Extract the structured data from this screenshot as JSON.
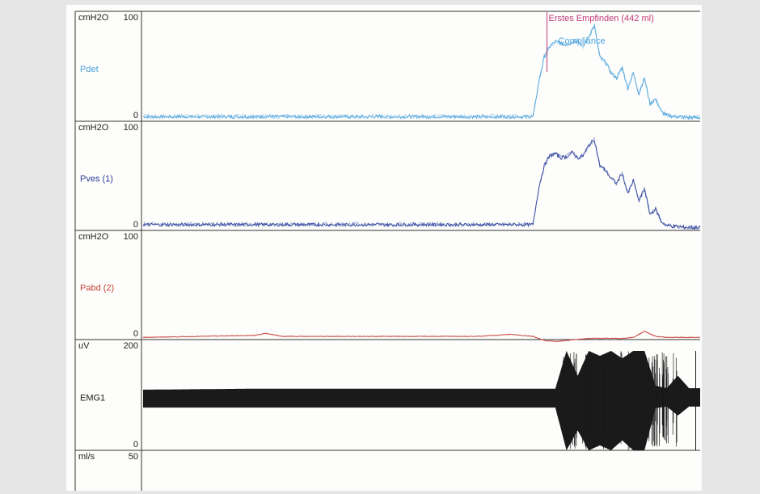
{
  "chart_data": [
    {
      "type": "line",
      "channel": "Pdet",
      "unit": "cmH2O",
      "ylim": [
        0,
        100
      ],
      "scale_top": "100",
      "scale_bottom": "0",
      "color": "#4aa3dd",
      "annotations": [
        "Erstes Empfinden (442 ml)",
        "Compliance"
      ],
      "annotation_colors": [
        "#c23b7a",
        "#4aa3dd"
      ],
      "x": [
        0,
        10,
        20,
        30,
        40,
        50,
        60,
        70,
        71,
        72,
        73,
        74,
        75,
        76,
        77,
        78,
        79,
        80,
        81,
        82,
        83,
        84,
        85,
        86,
        87,
        88,
        89,
        90,
        91,
        92,
        93,
        94,
        96,
        98,
        100
      ],
      "y": [
        3,
        3,
        3,
        3,
        3,
        3,
        3,
        3,
        35,
        60,
        70,
        75,
        73,
        72,
        74,
        76,
        70,
        80,
        90,
        60,
        55,
        45,
        40,
        50,
        30,
        45,
        25,
        40,
        15,
        20,
        8,
        4,
        3,
        2,
        2
      ]
    },
    {
      "type": "line",
      "channel": "Pves (1)",
      "unit": "cmH2O",
      "ylim": [
        0,
        100
      ],
      "scale_top": "100",
      "scale_bottom": "0",
      "color": "#2a3f9a",
      "x": [
        0,
        10,
        20,
        30,
        40,
        50,
        60,
        70,
        71,
        72,
        73,
        74,
        75,
        76,
        77,
        78,
        79,
        80,
        81,
        82,
        83,
        84,
        85,
        86,
        87,
        88,
        89,
        90,
        91,
        92,
        93,
        94,
        96,
        98,
        100
      ],
      "y": [
        5,
        5,
        5,
        5,
        5,
        5,
        5,
        5,
        40,
        62,
        72,
        74,
        70,
        71,
        75,
        70,
        72,
        82,
        88,
        62,
        58,
        50,
        45,
        55,
        35,
        48,
        28,
        40,
        15,
        20,
        8,
        4,
        3,
        2,
        2
      ]
    },
    {
      "type": "line",
      "channel": "Pabd (2)",
      "unit": "cmH2O",
      "ylim": [
        0,
        100
      ],
      "scale_top": "100",
      "scale_bottom": "0",
      "color": "#c8443c",
      "x": [
        0,
        10,
        20,
        22,
        25,
        30,
        40,
        50,
        60,
        66,
        70,
        72,
        74,
        76,
        78,
        80,
        82,
        84,
        86,
        88,
        90,
        92,
        94,
        96,
        98,
        100
      ],
      "y": [
        2,
        3,
        4,
        6,
        3,
        3,
        3,
        3,
        3,
        5,
        3,
        -1,
        -2,
        -1,
        0,
        1,
        1,
        1,
        1,
        2,
        8,
        3,
        2,
        2,
        2,
        2
      ]
    },
    {
      "type": "area",
      "channel": "EMG1",
      "unit": "uV",
      "ylim": [
        0,
        200
      ],
      "scale_top": "200",
      "scale_bottom": "0",
      "color": "#1a1a1a",
      "x": [
        0,
        10,
        20,
        30,
        40,
        50,
        60,
        70,
        74,
        76,
        78,
        80,
        82,
        84,
        86,
        88,
        90,
        92,
        94,
        96,
        98,
        100
      ],
      "y_high": [
        122,
        123,
        124,
        124,
        124,
        124,
        124,
        124,
        124,
        200,
        150,
        200,
        190,
        200,
        185,
        200,
        200,
        130,
        125,
        150,
        125,
        125
      ],
      "y_low": [
        86,
        86,
        86,
        86,
        86,
        86,
        86,
        86,
        86,
        0,
        40,
        0,
        10,
        0,
        20,
        0,
        0,
        85,
        88,
        70,
        88,
        88
      ]
    },
    {
      "type": "line",
      "channel": "",
      "unit": "ml/s",
      "ylim": [
        0,
        50
      ],
      "scale_top": "50",
      "color": "#333333"
    }
  ]
}
